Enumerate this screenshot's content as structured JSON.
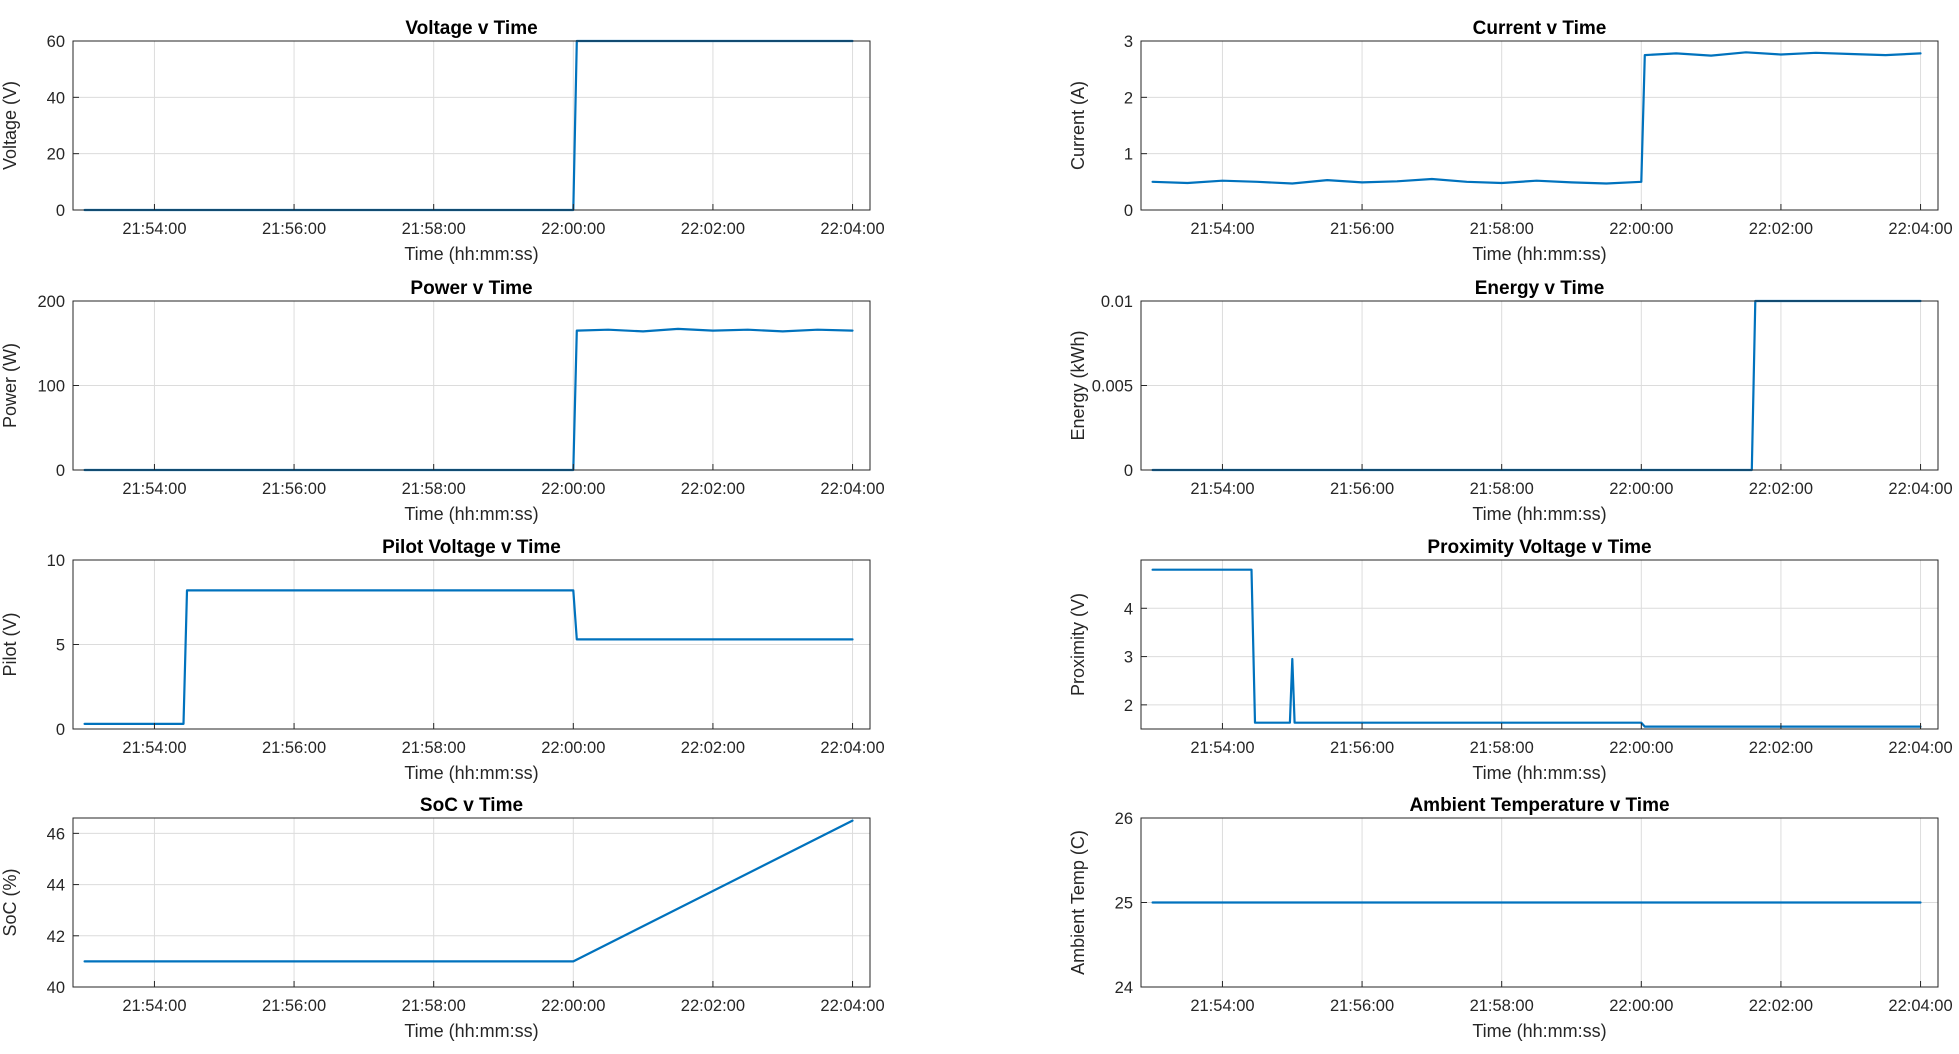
{
  "figure": {
    "line_color": "#0072bd",
    "grid_color": "#dcdcdc",
    "axis_color": "#262626"
  },
  "chart_data": [
    {
      "type": "line",
      "title": "Voltage v Time",
      "xlabel": "Time (hh:mm:ss)",
      "ylabel": "Voltage (V)",
      "xlim": [
        "21:52:50",
        "22:04:15"
      ],
      "ylim": [
        0,
        60
      ],
      "xticks": [
        "21:54:00",
        "21:56:00",
        "21:58:00",
        "22:00:00",
        "22:02:00",
        "22:04:00"
      ],
      "yticks": [
        0,
        20,
        40,
        60
      ],
      "grid": true,
      "series": [
        {
          "x": [
            "21:53:00",
            "22:00:00",
            "22:00:03",
            "22:04:00"
          ],
          "y": [
            0,
            0,
            60,
            60
          ]
        }
      ]
    },
    {
      "type": "line",
      "title": "Current v Time",
      "xlabel": "Time (hh:mm:ss)",
      "ylabel": "Current (A)",
      "xlim": [
        "21:52:50",
        "22:04:15"
      ],
      "ylim": [
        0,
        3
      ],
      "xticks": [
        "21:54:00",
        "21:56:00",
        "21:58:00",
        "22:00:00",
        "22:02:00",
        "22:04:00"
      ],
      "yticks": [
        0,
        1,
        2,
        3
      ],
      "grid": true,
      "series": [
        {
          "x": [
            "21:53:00",
            "21:53:30",
            "21:54:00",
            "21:54:30",
            "21:55:00",
            "21:55:30",
            "21:56:00",
            "21:56:30",
            "21:57:00",
            "21:57:30",
            "21:58:00",
            "21:58:30",
            "21:59:00",
            "21:59:30",
            "22:00:00",
            "22:00:03",
            "22:00:30",
            "22:01:00",
            "22:01:30",
            "22:02:00",
            "22:02:30",
            "22:03:00",
            "22:03:30",
            "22:04:00"
          ],
          "y": [
            0.5,
            0.48,
            0.52,
            0.5,
            0.47,
            0.53,
            0.49,
            0.51,
            0.55,
            0.5,
            0.48,
            0.52,
            0.49,
            0.47,
            0.5,
            2.75,
            2.78,
            2.74,
            2.8,
            2.76,
            2.79,
            2.77,
            2.75,
            2.78
          ]
        }
      ]
    },
    {
      "type": "line",
      "title": "Power v Time",
      "xlabel": "Time (hh:mm:ss)",
      "ylabel": "Power (W)",
      "xlim": [
        "21:52:50",
        "22:04:15"
      ],
      "ylim": [
        0,
        200
      ],
      "xticks": [
        "21:54:00",
        "21:56:00",
        "21:58:00",
        "22:00:00",
        "22:02:00",
        "22:04:00"
      ],
      "yticks": [
        0,
        100,
        200
      ],
      "grid": true,
      "series": [
        {
          "x": [
            "21:53:00",
            "22:00:00",
            "22:00:03",
            "22:00:30",
            "22:01:00",
            "22:01:30",
            "22:02:00",
            "22:02:30",
            "22:03:00",
            "22:03:30",
            "22:04:00"
          ],
          "y": [
            0,
            0,
            165,
            166,
            164,
            167,
            165,
            166,
            164,
            166,
            165
          ]
        }
      ]
    },
    {
      "type": "line",
      "title": "Energy v Time",
      "xlabel": "Time (hh:mm:ss)",
      "ylabel": "Energy (kWh)",
      "xlim": [
        "21:52:50",
        "22:04:15"
      ],
      "ylim": [
        0,
        0.01
      ],
      "xticks": [
        "21:54:00",
        "21:56:00",
        "21:58:00",
        "22:00:00",
        "22:02:00",
        "22:04:00"
      ],
      "yticks": [
        0,
        0.005,
        0.01
      ],
      "grid": true,
      "series": [
        {
          "x": [
            "21:53:00",
            "22:01:35",
            "22:01:38",
            "22:04:00"
          ],
          "y": [
            0,
            0,
            0.01,
            0.01
          ]
        }
      ]
    },
    {
      "type": "line",
      "title": "Pilot Voltage v Time",
      "xlabel": "Time (hh:mm:ss)",
      "ylabel": "Pilot (V)",
      "xlim": [
        "21:52:50",
        "22:04:15"
      ],
      "ylim": [
        0,
        10
      ],
      "xticks": [
        "21:54:00",
        "21:56:00",
        "21:58:00",
        "22:00:00",
        "22:02:00",
        "22:04:00"
      ],
      "yticks": [
        0,
        5,
        10
      ],
      "grid": true,
      "series": [
        {
          "x": [
            "21:53:00",
            "21:54:25",
            "21:54:28",
            "22:00:00",
            "22:00:03",
            "22:04:00"
          ],
          "y": [
            0.3,
            0.3,
            8.2,
            8.2,
            5.3,
            5.3
          ]
        }
      ]
    },
    {
      "type": "line",
      "title": "Proximity Voltage v Time",
      "xlabel": "Time (hh:mm:ss)",
      "ylabel": "Proximity (V)",
      "xlim": [
        "21:52:50",
        "22:04:15"
      ],
      "ylim": [
        1.5,
        5
      ],
      "xticks": [
        "21:54:00",
        "21:56:00",
        "21:58:00",
        "22:00:00",
        "22:02:00",
        "22:04:00"
      ],
      "yticks": [
        2,
        3,
        4
      ],
      "grid": true,
      "series": [
        {
          "x": [
            "21:53:00",
            "21:54:25",
            "21:54:28",
            "21:54:58",
            "21:55:00",
            "21:55:02",
            "22:00:00",
            "22:00:03",
            "22:04:00"
          ],
          "y": [
            4.8,
            4.8,
            1.63,
            1.63,
            2.95,
            1.63,
            1.63,
            1.55,
            1.55
          ]
        }
      ]
    },
    {
      "type": "line",
      "title": "SoC v Time",
      "xlabel": "Time (hh:mm:ss)",
      "ylabel": "SoC (%)",
      "xlim": [
        "21:52:50",
        "22:04:15"
      ],
      "ylim": [
        40,
        46.6
      ],
      "xticks": [
        "21:54:00",
        "21:56:00",
        "21:58:00",
        "22:00:00",
        "22:02:00",
        "22:04:00"
      ],
      "yticks": [
        40,
        42,
        44,
        46
      ],
      "grid": true,
      "series": [
        {
          "x": [
            "21:53:00",
            "22:00:00",
            "22:04:00"
          ],
          "y": [
            41,
            41,
            46.5
          ]
        }
      ]
    },
    {
      "type": "line",
      "title": "Ambient Temperature v Time",
      "xlabel": "Time (hh:mm:ss)",
      "ylabel": "Ambient Temp (C)",
      "xlim": [
        "21:52:50",
        "22:04:15"
      ],
      "ylim": [
        24,
        26
      ],
      "xticks": [
        "21:54:00",
        "21:56:00",
        "21:58:00",
        "22:00:00",
        "22:02:00",
        "22:04:00"
      ],
      "yticks": [
        24,
        25,
        26
      ],
      "grid": true,
      "series": [
        {
          "x": [
            "21:53:00",
            "22:04:00"
          ],
          "y": [
            25,
            25
          ]
        }
      ]
    }
  ]
}
